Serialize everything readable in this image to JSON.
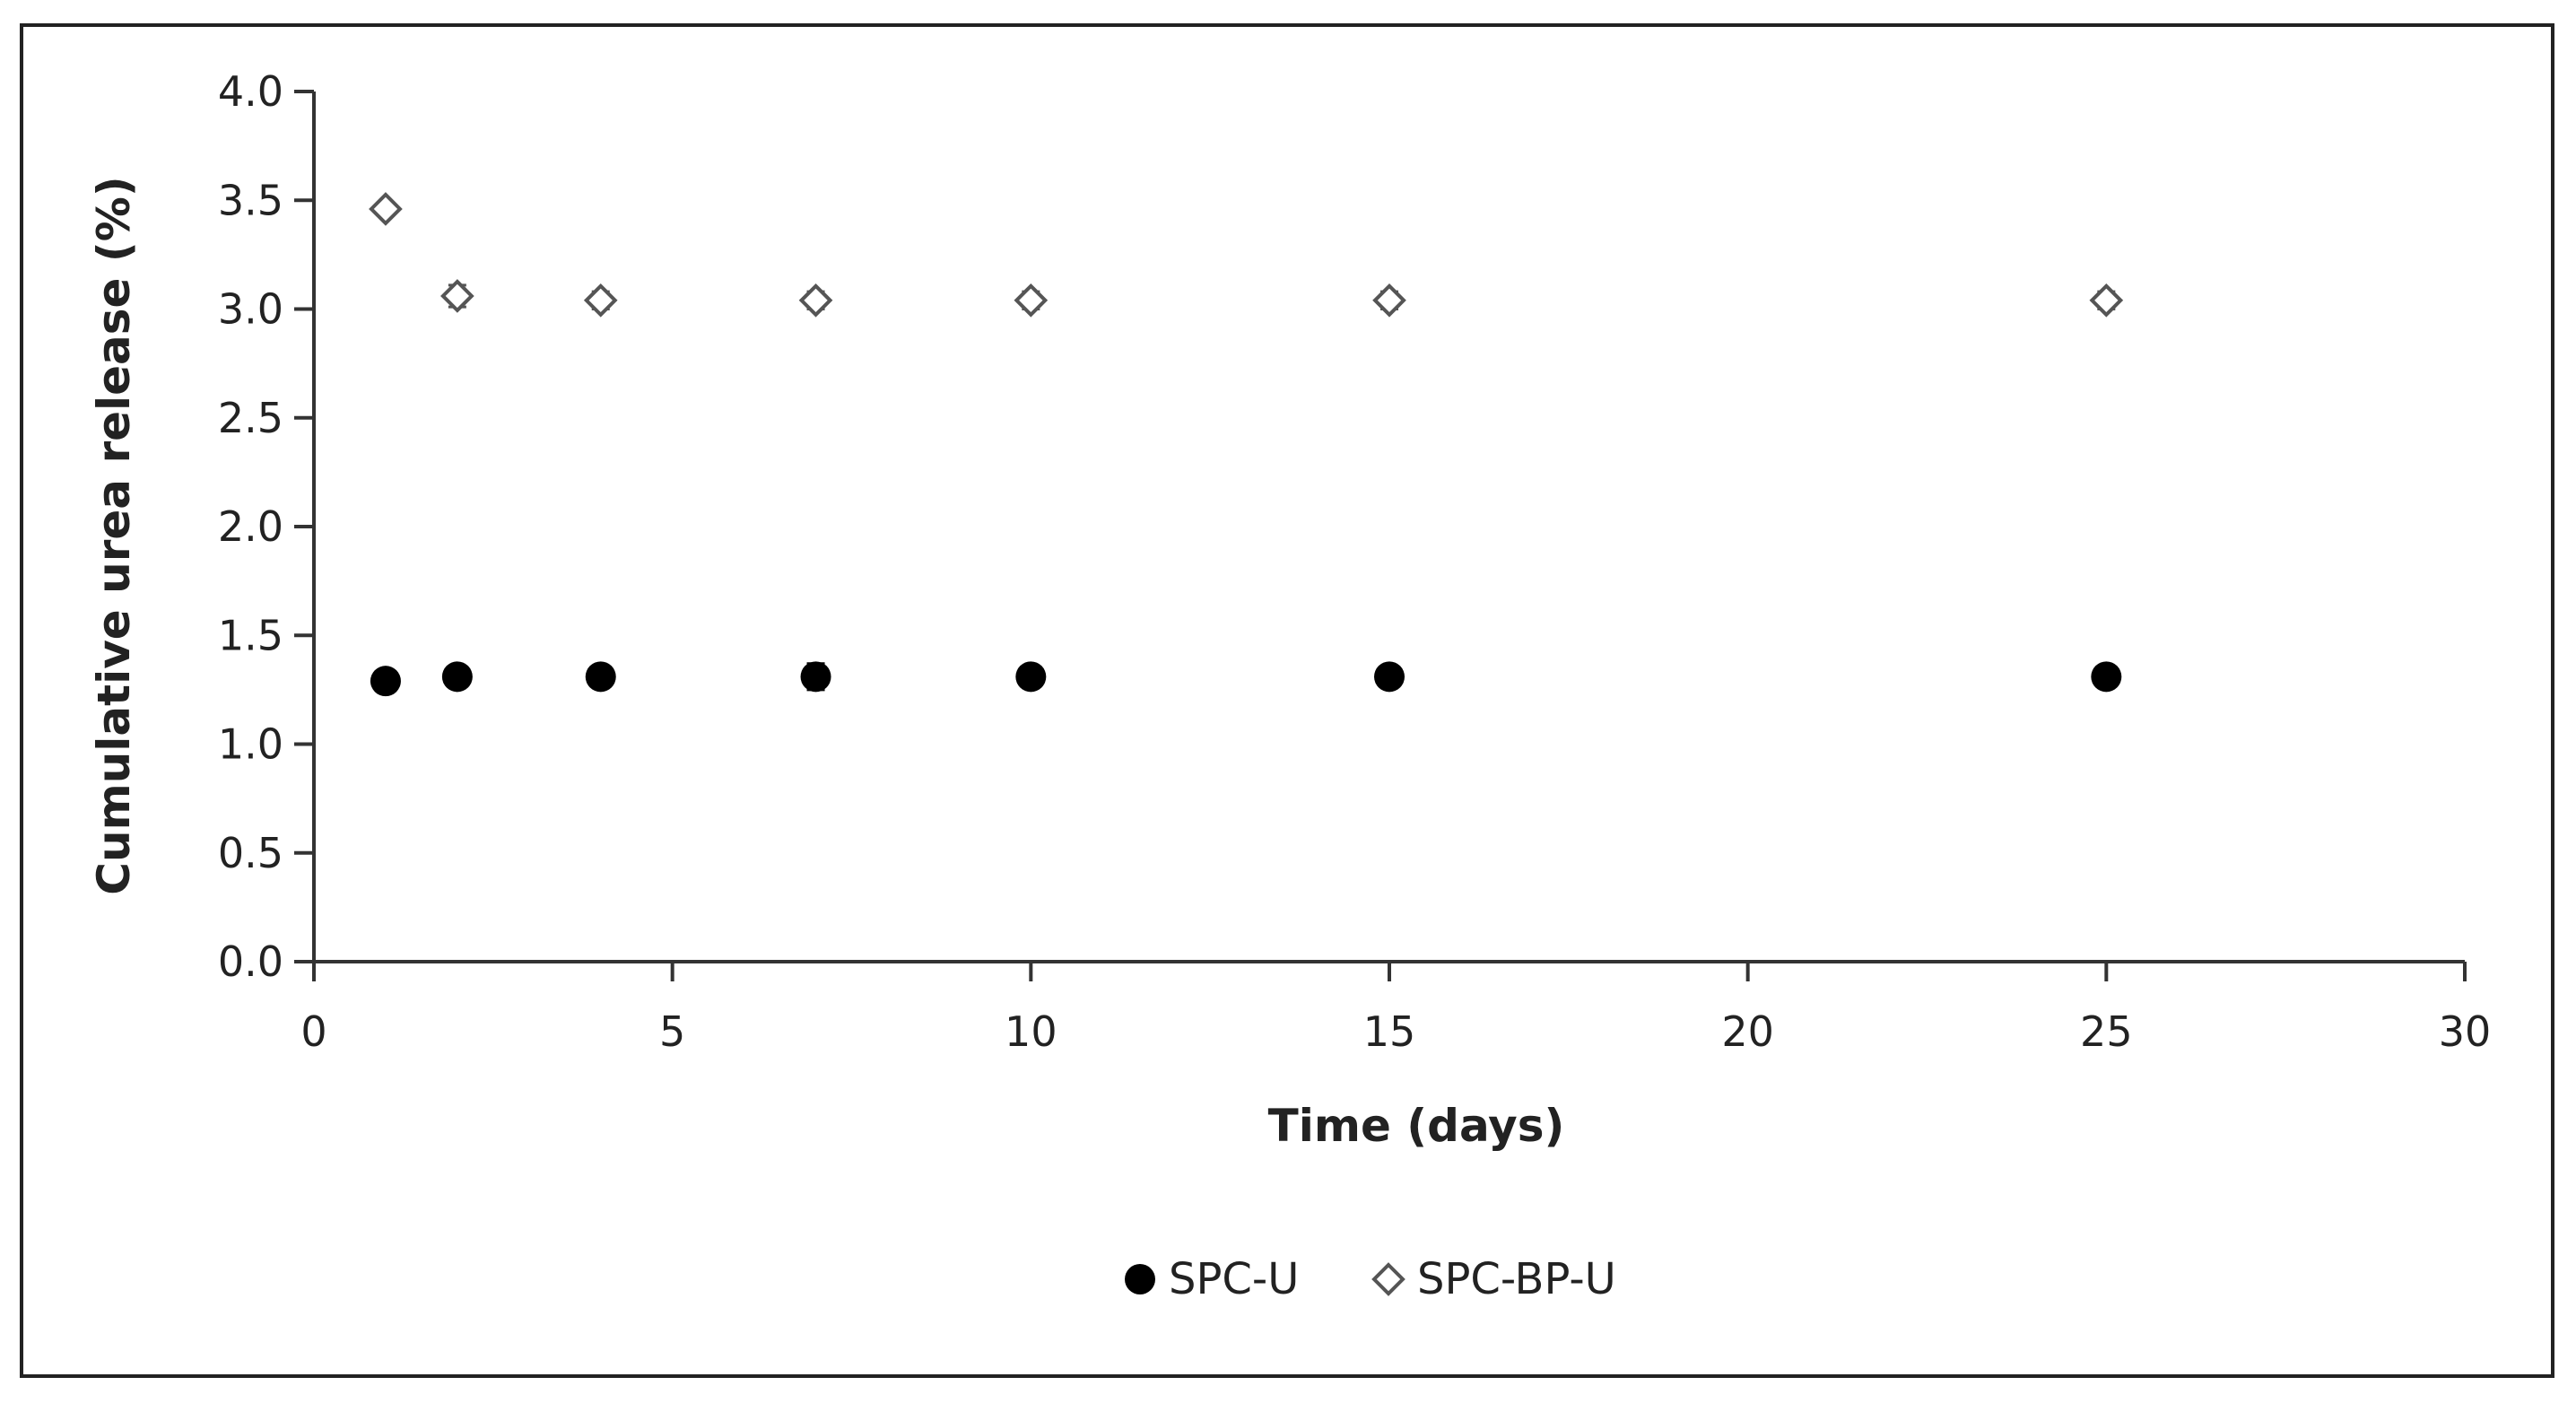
{
  "chart_data": {
    "type": "scatter",
    "xlabel": "Time (days)",
    "ylabel": "Cumulative urea release (%)",
    "xlim": [
      0,
      30
    ],
    "ylim": [
      0,
      4.0
    ],
    "x_ticks": [
      "0",
      "5",
      "10",
      "15",
      "20",
      "25",
      "30"
    ],
    "y_ticks": [
      "0.0",
      "0.5",
      "1.0",
      "1.5",
      "2.0",
      "2.5",
      "3.0",
      "3.5",
      "4.0"
    ],
    "grid": false,
    "legend_position": "bottom",
    "series": [
      {
        "name": "SPC-U",
        "marker": "filled-circle",
        "color": "#000000",
        "x": [
          1,
          2,
          4,
          7,
          10,
          15,
          25
        ],
        "y": [
          1.29,
          1.31,
          1.31,
          1.31,
          1.31,
          1.31,
          1.31
        ],
        "err": [
          0.03,
          0.03,
          0.05,
          0.06,
          0.04,
          0.04,
          0.04
        ]
      },
      {
        "name": "SPC-BP-U",
        "marker": "open-diamond",
        "color": "#555555",
        "x": [
          1,
          2,
          4,
          7,
          10,
          15,
          25
        ],
        "y": [
          3.46,
          3.06,
          3.04,
          3.04,
          3.04,
          3.04,
          3.04
        ],
        "err": [
          0.03,
          0.05,
          0.04,
          0.04,
          0.04,
          0.04,
          0.04
        ]
      }
    ]
  }
}
